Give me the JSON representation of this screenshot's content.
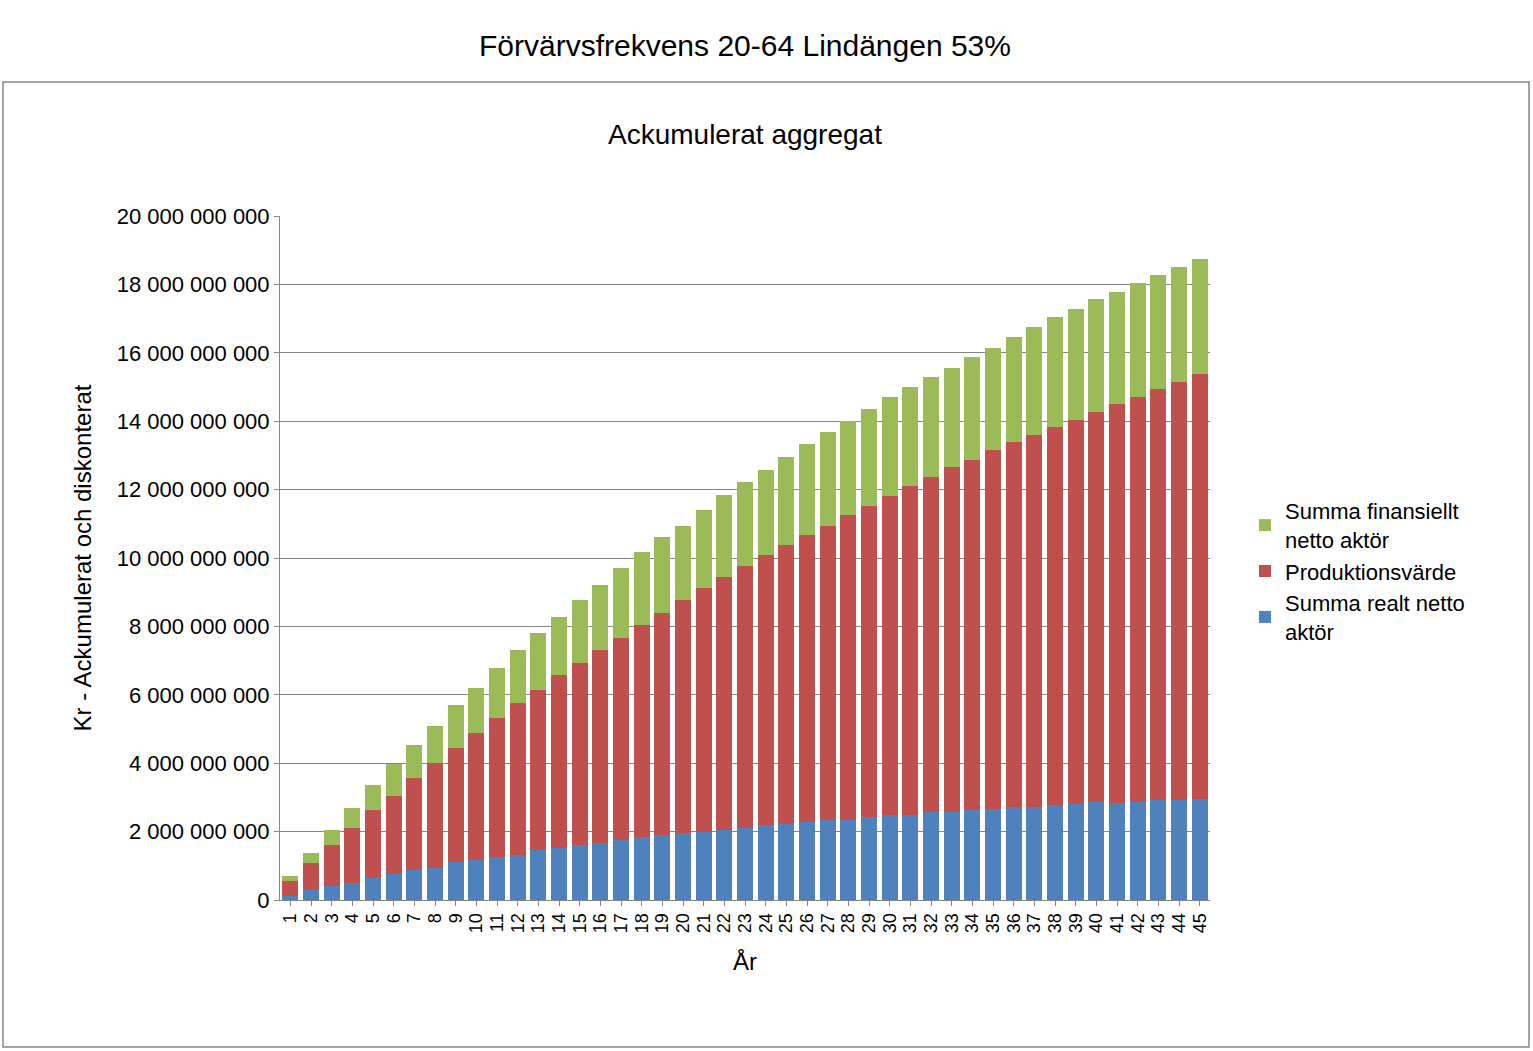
{
  "chart_data": {
    "type": "bar",
    "title": "Förvärvsfrekvens 20-64 Lindängen 53%",
    "subtitle": "Ackumulerat aggregat",
    "x_label": "År",
    "y_label": "Kr - Ackumulerat och diskonterat",
    "stacked": true,
    "grid": true,
    "legend": "right",
    "categories": [
      "1",
      "2",
      "3",
      "4",
      "5",
      "6",
      "7",
      "8",
      "9",
      "10",
      "11",
      "12",
      "13",
      "14",
      "15",
      "16",
      "17",
      "18",
      "19",
      "20",
      "21",
      "22",
      "23",
      "24",
      "25",
      "26",
      "27",
      "28",
      "29",
      "30",
      "31",
      "32",
      "33",
      "34",
      "35",
      "36",
      "37",
      "38",
      "39",
      "40",
      "41",
      "42",
      "43",
      "44",
      "45"
    ],
    "series": [
      {
        "name": "Summa realt netto aktör",
        "color": "#4F81BD",
        "values": [
          120000000,
          280000000,
          420000000,
          500000000,
          650000000,
          750000000,
          880000000,
          950000000,
          1100000000,
          1170000000,
          1250000000,
          1330000000,
          1450000000,
          1530000000,
          1600000000,
          1680000000,
          1750000000,
          1850000000,
          1900000000,
          1970000000,
          1980000000,
          2050000000,
          2100000000,
          2200000000,
          2220000000,
          2280000000,
          2350000000,
          2350000000,
          2420000000,
          2480000000,
          2500000000,
          2570000000,
          2570000000,
          2630000000,
          2650000000,
          2720000000,
          2730000000,
          2780000000,
          2800000000,
          2870000000,
          2850000000,
          2880000000,
          2930000000,
          2930000000,
          2950000000
        ]
      },
      {
        "name": "Produktionsvärde",
        "color": "#C0504D",
        "values": [
          430000000,
          800000000,
          1180000000,
          1600000000,
          1970000000,
          2300000000,
          2700000000,
          3050000000,
          3350000000,
          3710000000,
          4080000000,
          4440000000,
          4680000000,
          5040000000,
          5330000000,
          5620000000,
          5920000000,
          6180000000,
          6500000000,
          6800000000,
          7150000000,
          7380000000,
          7680000000,
          7880000000,
          8160000000,
          8390000000,
          8600000000,
          8900000000,
          9110000000,
          9340000000,
          9600000000,
          9810000000,
          10080000000,
          10240000000,
          10500000000,
          10660000000,
          10870000000,
          11040000000,
          11230000000,
          11400000000,
          11650000000,
          11820000000,
          12000000000,
          12220000000,
          12420000000
        ]
      },
      {
        "name": "Summa finansiellt netto aktör",
        "color": "#9BBB59",
        "values": [
          150000000,
          300000000,
          450000000,
          600000000,
          750000000,
          920000000,
          950000000,
          1100000000,
          1250000000,
          1320000000,
          1450000000,
          1530000000,
          1690000000,
          1700000000,
          1840000000,
          1920000000,
          2050000000,
          2140000000,
          2200000000,
          2180000000,
          2270000000,
          2400000000,
          2440000000,
          2490000000,
          2570000000,
          2650000000,
          2730000000,
          2750000000,
          2820000000,
          2880000000,
          2900000000,
          2900000000,
          2920000000,
          3000000000,
          3000000000,
          3090000000,
          3150000000,
          3230000000,
          3240000000,
          3300000000,
          3270000000,
          3330000000,
          3350000000,
          3350000000,
          3380000000
        ]
      }
    ],
    "ylim": [
      0,
      20000000000
    ],
    "yticks": [
      0,
      {
        "value": 2000000000,
        "label": "2 000 000 000"
      },
      {
        "value": 4000000000,
        "label": "4 000 000 000"
      },
      {
        "value": 6000000000,
        "label": "6 000 000 000"
      },
      {
        "value": 8000000000,
        "label": "8 000 000 000"
      },
      {
        "value": 10000000000,
        "label": "10 000 000 000"
      },
      {
        "value": 12000000000,
        "label": "12 000 000 000"
      },
      {
        "value": 14000000000,
        "label": "14 000 000 000"
      },
      {
        "value": 16000000000,
        "label": "16 000 000 000"
      },
      {
        "value": 18000000000,
        "label": "18 000 000 000"
      },
      {
        "value": 20000000000,
        "label": "20 000 000 000"
      }
    ]
  }
}
